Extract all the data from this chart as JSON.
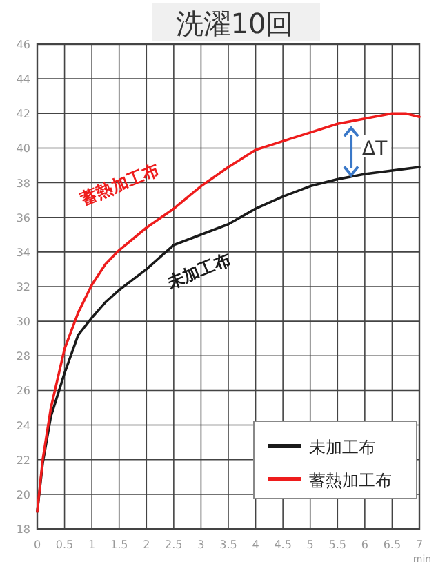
{
  "chart_data": {
    "type": "line",
    "title": "洗濯10回",
    "xlabel": "min",
    "x": [
      0,
      0.1,
      0.25,
      0.5,
      0.75,
      1,
      1.25,
      1.5,
      2,
      2.5,
      3,
      3.5,
      4,
      4.5,
      5,
      5.5,
      6,
      6.5,
      6.75,
      7
    ],
    "series": [
      {
        "name": "未加工布",
        "color": "#1a1a1a",
        "values": [
          19,
          21.8,
          24.5,
          27,
          29.2,
          30.2,
          31.1,
          31.8,
          33.0,
          34.4,
          35.0,
          35.6,
          36.5,
          37.2,
          37.8,
          38.2,
          38.5,
          38.7,
          38.8,
          38.9
        ]
      },
      {
        "name": "蓄熱加工布",
        "color": "#ee1c1c",
        "values": [
          19,
          22,
          25,
          28.4,
          30.5,
          32.1,
          33.3,
          34.1,
          35.4,
          36.5,
          37.8,
          38.9,
          39.9,
          40.4,
          40.9,
          41.4,
          41.7,
          42.0,
          42.0,
          41.8
        ]
      }
    ],
    "xlim": [
      0,
      7
    ],
    "xticks": [
      0,
      0.5,
      1,
      1.5,
      2,
      2.5,
      3,
      3.5,
      4,
      4.5,
      5,
      5.5,
      6,
      6.5,
      7
    ],
    "ylim": [
      18,
      46
    ],
    "yticks": [
      18,
      20,
      22,
      24,
      26,
      28,
      30,
      32,
      34,
      36,
      38,
      40,
      42,
      44,
      46
    ],
    "grid": true,
    "legend": "bottom right",
    "line_style": "solid",
    "annotations": [
      "ΔT",
      "蓄熱加工布",
      "未加工布"
    ]
  }
}
